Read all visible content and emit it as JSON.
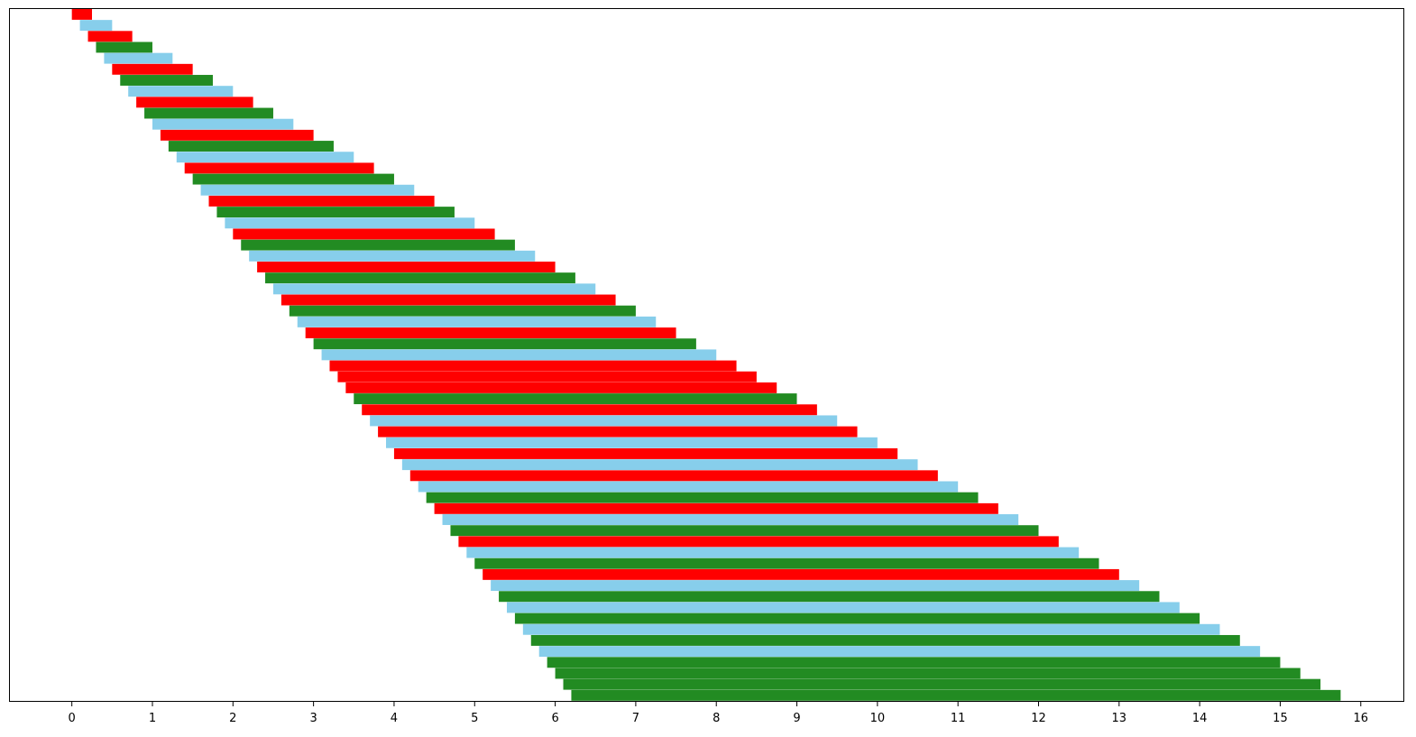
{
  "chart_data": {
    "type": "bar",
    "orientation": "horizontal",
    "title": "",
    "xlabel": "",
    "ylabel": "",
    "xlim": [
      -0.78,
      16.54
    ],
    "xticks": [
      0,
      1,
      2,
      3,
      4,
      5,
      6,
      7,
      8,
      9,
      10,
      11,
      12,
      13,
      14,
      15,
      16
    ],
    "xtick_labels": [
      "0",
      "1",
      "2",
      "3",
      "4",
      "5",
      "6",
      "7",
      "8",
      "9",
      "10",
      "11",
      "12",
      "13",
      "14",
      "15",
      "16"
    ],
    "yticks_visible": false,
    "grid": false,
    "legend": "none",
    "colors": {
      "red": "#ff0000",
      "skyblue": "#87ceeb",
      "green": "#228b22"
    },
    "bars": [
      {
        "start": 0.0,
        "end": 0.25,
        "color": "red"
      },
      {
        "start": 0.1,
        "end": 0.5,
        "color": "skyblue"
      },
      {
        "start": 0.2,
        "end": 0.75,
        "color": "red"
      },
      {
        "start": 0.3,
        "end": 1.0,
        "color": "green"
      },
      {
        "start": 0.4,
        "end": 1.25,
        "color": "skyblue"
      },
      {
        "start": 0.5,
        "end": 1.5,
        "color": "red"
      },
      {
        "start": 0.6,
        "end": 1.75,
        "color": "green"
      },
      {
        "start": 0.7,
        "end": 2.0,
        "color": "skyblue"
      },
      {
        "start": 0.8,
        "end": 2.25,
        "color": "red"
      },
      {
        "start": 0.9,
        "end": 2.5,
        "color": "green"
      },
      {
        "start": 1.0,
        "end": 2.75,
        "color": "skyblue"
      },
      {
        "start": 1.1,
        "end": 3.0,
        "color": "red"
      },
      {
        "start": 1.2,
        "end": 3.25,
        "color": "green"
      },
      {
        "start": 1.3,
        "end": 3.5,
        "color": "skyblue"
      },
      {
        "start": 1.4,
        "end": 3.75,
        "color": "red"
      },
      {
        "start": 1.5,
        "end": 4.0,
        "color": "green"
      },
      {
        "start": 1.6,
        "end": 4.25,
        "color": "skyblue"
      },
      {
        "start": 1.7,
        "end": 4.5,
        "color": "red"
      },
      {
        "start": 1.8,
        "end": 4.75,
        "color": "green"
      },
      {
        "start": 1.9,
        "end": 5.0,
        "color": "skyblue"
      },
      {
        "start": 2.0,
        "end": 5.25,
        "color": "red"
      },
      {
        "start": 2.1,
        "end": 5.5,
        "color": "green"
      },
      {
        "start": 2.2,
        "end": 5.75,
        "color": "skyblue"
      },
      {
        "start": 2.3,
        "end": 6.0,
        "color": "red"
      },
      {
        "start": 2.4,
        "end": 6.25,
        "color": "green"
      },
      {
        "start": 2.5,
        "end": 6.5,
        "color": "skyblue"
      },
      {
        "start": 2.6,
        "end": 6.75,
        "color": "red"
      },
      {
        "start": 2.7,
        "end": 7.0,
        "color": "green"
      },
      {
        "start": 2.8,
        "end": 7.25,
        "color": "skyblue"
      },
      {
        "start": 2.9,
        "end": 7.5,
        "color": "red"
      },
      {
        "start": 3.0,
        "end": 7.75,
        "color": "green"
      },
      {
        "start": 3.1,
        "end": 8.0,
        "color": "skyblue"
      },
      {
        "start": 3.2,
        "end": 8.25,
        "color": "red"
      },
      {
        "start": 3.3,
        "end": 8.5,
        "color": "red"
      },
      {
        "start": 3.4,
        "end": 8.75,
        "color": "red"
      },
      {
        "start": 3.5,
        "end": 9.0,
        "color": "green"
      },
      {
        "start": 3.6,
        "end": 9.25,
        "color": "red"
      },
      {
        "start": 3.7,
        "end": 9.5,
        "color": "skyblue"
      },
      {
        "start": 3.8,
        "end": 9.75,
        "color": "red"
      },
      {
        "start": 3.9,
        "end": 10.0,
        "color": "skyblue"
      },
      {
        "start": 4.0,
        "end": 10.25,
        "color": "red"
      },
      {
        "start": 4.1,
        "end": 10.5,
        "color": "skyblue"
      },
      {
        "start": 4.2,
        "end": 10.75,
        "color": "red"
      },
      {
        "start": 4.3,
        "end": 11.0,
        "color": "skyblue"
      },
      {
        "start": 4.4,
        "end": 11.25,
        "color": "green"
      },
      {
        "start": 4.5,
        "end": 11.5,
        "color": "red"
      },
      {
        "start": 4.6,
        "end": 11.75,
        "color": "skyblue"
      },
      {
        "start": 4.7,
        "end": 12.0,
        "color": "green"
      },
      {
        "start": 4.8,
        "end": 12.25,
        "color": "red"
      },
      {
        "start": 4.9,
        "end": 12.5,
        "color": "skyblue"
      },
      {
        "start": 5.0,
        "end": 12.75,
        "color": "green"
      },
      {
        "start": 5.1,
        "end": 13.0,
        "color": "red"
      },
      {
        "start": 5.2,
        "end": 13.25,
        "color": "skyblue"
      },
      {
        "start": 5.3,
        "end": 13.5,
        "color": "green"
      },
      {
        "start": 5.4,
        "end": 13.75,
        "color": "skyblue"
      },
      {
        "start": 5.5,
        "end": 14.0,
        "color": "green"
      },
      {
        "start": 5.6,
        "end": 14.25,
        "color": "skyblue"
      },
      {
        "start": 5.7,
        "end": 14.5,
        "color": "green"
      },
      {
        "start": 5.8,
        "end": 14.75,
        "color": "skyblue"
      },
      {
        "start": 5.9,
        "end": 15.0,
        "color": "green"
      },
      {
        "start": 6.0,
        "end": 15.25,
        "color": "green"
      },
      {
        "start": 6.1,
        "end": 15.5,
        "color": "green"
      },
      {
        "start": 6.2,
        "end": 15.75,
        "color": "green"
      }
    ]
  }
}
